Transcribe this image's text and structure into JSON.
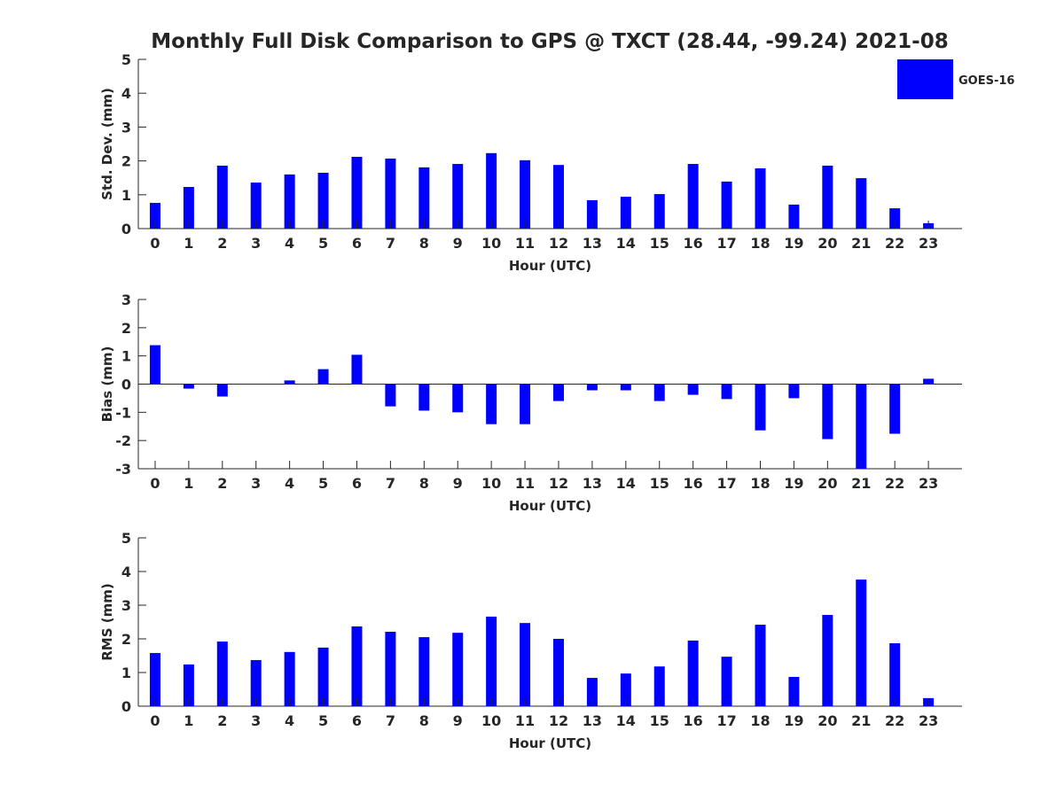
{
  "chart_data": {
    "type": "bar",
    "title": "Monthly Full Disk Comparison to GPS @ TXCT (28.44, -99.24) 2021-08",
    "legend": {
      "entries": [
        "GOES-16"
      ],
      "placement": "top-right"
    },
    "bar_color": "#0000ff",
    "categories": [
      0,
      1,
      2,
      3,
      4,
      5,
      6,
      7,
      8,
      9,
      10,
      11,
      12,
      13,
      14,
      15,
      16,
      17,
      18,
      19,
      20,
      21,
      22,
      23
    ],
    "panels": [
      {
        "ylabel": "Std. Dev. (mm)",
        "xlabel": "Hour (UTC)",
        "ylim": [
          0,
          5
        ],
        "yticks": [
          0,
          1,
          2,
          3,
          4,
          5
        ],
        "series": [
          {
            "name": "GOES-16",
            "values": [
              0.76,
              1.23,
              1.86,
              1.36,
              1.6,
              1.65,
              2.12,
              2.07,
              1.81,
              1.91,
              2.23,
              2.02,
              1.88,
              0.84,
              0.94,
              1.02,
              1.91,
              1.39,
              1.78,
              0.71,
              1.86,
              1.49,
              0.6,
              0.16
            ]
          }
        ]
      },
      {
        "ylabel": "Bias (mm)",
        "xlabel": "Hour (UTC)",
        "ylim": [
          -3,
          3
        ],
        "yticks": [
          -3,
          -2,
          -1,
          0,
          1,
          2,
          3
        ],
        "series": [
          {
            "name": "GOES-16",
            "values": [
              1.38,
              -0.16,
              -0.44,
              0,
              0.13,
              0.53,
              1.04,
              -0.79,
              -0.94,
              -1.0,
              -1.42,
              -1.42,
              -0.6,
              -0.22,
              -0.22,
              -0.6,
              -0.38,
              -0.53,
              -1.64,
              -0.5,
              -1.95,
              -3.44,
              -1.76,
              0.19
            ]
          }
        ]
      },
      {
        "ylabel": "RMS (mm)",
        "xlabel": "Hour (UTC)",
        "ylim": [
          0,
          5
        ],
        "yticks": [
          0,
          1,
          2,
          3,
          4,
          5
        ],
        "series": [
          {
            "name": "GOES-16",
            "values": [
              1.58,
              1.24,
              1.92,
              1.37,
              1.61,
              1.74,
              2.37,
              2.21,
              2.05,
              2.18,
              2.66,
              2.47,
              2.0,
              0.84,
              0.97,
              1.18,
              1.95,
              1.47,
              2.42,
              0.87,
              2.71,
              3.76,
              1.87,
              0.24
            ]
          }
        ]
      }
    ]
  }
}
